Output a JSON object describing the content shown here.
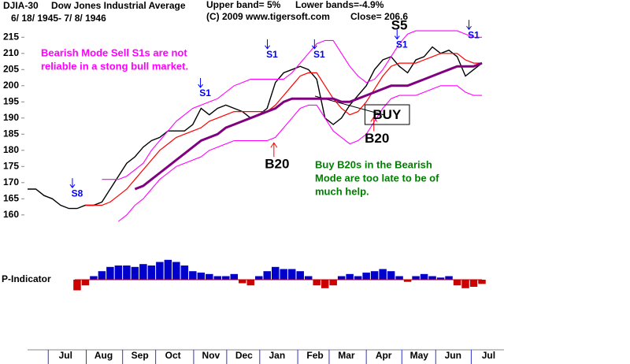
{
  "chart_data": [
    {
      "type": "line",
      "ticker": "DJIA-30",
      "title": "Dow Jones Industrial Average",
      "subtitle": "6/ 18/ 1945- 7/ 8/ 1946",
      "upper_band_label": "Upper band= 5%",
      "lower_band_label": "Lower bands=-4.9%",
      "copyright": "(C) 2009 www.tigersoft.com",
      "close_label": "Close=  206.6",
      "xlim": [
        0,
        55
      ],
      "xticks": [
        {
          "value": 4.6,
          "label": "Jul"
        },
        {
          "value": 9.2,
          "label": "Aug"
        },
        {
          "value": 13.6,
          "label": "Sep"
        },
        {
          "value": 17.6,
          "label": "Oct"
        },
        {
          "value": 22.2,
          "label": "Nov"
        },
        {
          "value": 26.2,
          "label": "Dec"
        },
        {
          "value": 30.2,
          "label": "Jan"
        },
        {
          "value": 34.8,
          "label": "Feb"
        },
        {
          "value": 38.6,
          "label": "Mar"
        },
        {
          "value": 43.1,
          "label": "Apr"
        },
        {
          "value": 47.4,
          "label": "May"
        },
        {
          "value": 51.5,
          "label": "Jun"
        },
        {
          "value": 55.8,
          "label": "Jul"
        }
      ],
      "ylim": [
        158,
        218
      ],
      "yticks": [
        160,
        165,
        170,
        175,
        180,
        185,
        190,
        195,
        200,
        205,
        210,
        215
      ],
      "grid": false,
      "series": [
        {
          "color": "#000000",
          "values": [
            168,
            168,
            166,
            165,
            163,
            162,
            162,
            163,
            163,
            164,
            168,
            172,
            176,
            178,
            181,
            183,
            184,
            186,
            186,
            186,
            188,
            193,
            191,
            193,
            194,
            193,
            192,
            190,
            191,
            193,
            201,
            204,
            205,
            206,
            205,
            202,
            190,
            188,
            190,
            194,
            197,
            200,
            205,
            208,
            209,
            206,
            204,
            208,
            209,
            212,
            210,
            211,
            209,
            203,
            205,
            207
          ]
        },
        {
          "color": "#ff0000",
          "values": [
            null,
            null,
            null,
            null,
            null,
            null,
            null,
            163,
            163,
            163,
            164,
            166,
            168,
            171,
            174,
            177,
            180,
            182,
            184,
            185,
            186,
            187,
            189,
            190,
            191,
            192,
            192,
            192,
            192,
            192,
            194,
            197,
            200,
            203,
            204,
            204,
            200,
            196,
            193,
            191,
            192,
            195,
            199,
            203,
            206,
            207,
            207,
            207,
            208,
            209,
            210,
            210,
            210,
            208,
            207,
            207
          ]
        },
        {
          "color": "#ff00ff",
          "values": [
            null,
            null,
            null,
            null,
            null,
            null,
            null,
            null,
            null,
            171,
            171,
            171,
            172,
            174,
            176,
            180,
            183,
            186,
            189,
            191,
            193,
            194,
            195,
            196,
            198,
            200,
            201,
            202,
            202,
            202,
            202,
            202,
            204,
            207,
            210,
            213,
            214,
            214,
            210,
            206,
            203,
            201,
            202,
            205,
            209,
            213,
            216,
            217,
            217,
            217,
            217,
            217,
            217,
            216,
            215,
            215
          ]
        },
        {
          "color": "#ff00ff",
          "values": [
            null,
            null,
            null,
            null,
            null,
            null,
            null,
            null,
            null,
            null,
            null,
            158,
            160,
            163,
            165,
            168,
            171,
            173,
            175,
            176,
            177,
            178,
            180,
            181,
            182,
            183,
            183,
            183,
            183,
            183,
            184,
            187,
            190,
            193,
            194,
            194,
            190,
            186,
            184,
            182,
            183,
            185,
            189,
            193,
            196,
            197,
            197,
            197,
            198,
            199,
            200,
            200,
            200,
            198,
            197,
            197
          ]
        },
        {
          "color": "#800080",
          "values": [
            null,
            null,
            null,
            null,
            null,
            null,
            null,
            null,
            null,
            null,
            null,
            null,
            null,
            168,
            169,
            171,
            173,
            175,
            177,
            179,
            181,
            183,
            184,
            185,
            187,
            188,
            189,
            190,
            191,
            192,
            193,
            195,
            196,
            196,
            196,
            196,
            196,
            196,
            195,
            195,
            196,
            197,
            198,
            199,
            200,
            200,
            200,
            201,
            202,
            203,
            204,
            205,
            206,
            206,
            206,
            207
          ]
        }
      ],
      "annotations": [
        {
          "text": "S8",
          "x": 6,
          "y": 166.5,
          "arrow": "down",
          "color": "#0000ff"
        },
        {
          "text": "S1",
          "x": 21.5,
          "y": 197.5,
          "arrow": "down",
          "color": "#0000ff"
        },
        {
          "text": "S1",
          "x": 29.6,
          "y": 209.5,
          "arrow": "down",
          "color": "#0000ff"
        },
        {
          "text": "S1",
          "x": 35.3,
          "y": 209.5,
          "arrow": "down",
          "color": "#0000ff"
        },
        {
          "text": "S1",
          "x": 45.3,
          "y": 212.5,
          "arrow": "down",
          "color": "#0000ff"
        },
        {
          "text": "S1",
          "x": 54,
          "y": 215.5,
          "arrow": "down",
          "color": "#0000ff"
        },
        {
          "text": "S5",
          "x": 45,
          "y": 218.5,
          "arrow": "none",
          "color": "#000000",
          "size": "big"
        },
        {
          "text": "B20",
          "x": 30.2,
          "y": 175.5,
          "arrow": "up",
          "color": "#000000",
          "size": "big"
        },
        {
          "text": "B20",
          "x": 42.3,
          "y": 183.5,
          "arrow": "up",
          "color": "#000000",
          "size": "big"
        },
        {
          "text": "BUY",
          "x": 43.5,
          "y": 190.8,
          "arrow": "none",
          "color": "#000000",
          "size": "big",
          "box": true
        }
      ],
      "notes": [
        {
          "lines": [
            "Bearish Mode Sell S1s are not",
            "reliable in a stong bull market."
          ],
          "color": "#ff00ff"
        },
        {
          "lines": [
            "Buy B20s in the Bearish",
            "Mode are too late to be of",
            "much help."
          ],
          "color": "#008000"
        }
      ]
    },
    {
      "type": "bar",
      "title": "P-Indicator",
      "xlim": [
        0,
        55
      ],
      "ylim": [
        -30,
        30
      ],
      "positive_color": "#0000cc",
      "negative_color": "#cc0000",
      "values": [
        0,
        0,
        0,
        0,
        0,
        0,
        -15,
        -8,
        5,
        12,
        18,
        20,
        20,
        18,
        22,
        20,
        25,
        28,
        25,
        20,
        12,
        10,
        8,
        5,
        5,
        8,
        -5,
        -8,
        5,
        12,
        18,
        15,
        15,
        12,
        5,
        -8,
        -12,
        -8,
        5,
        8,
        5,
        10,
        12,
        15,
        12,
        5,
        -3,
        5,
        8,
        5,
        3,
        5,
        -8,
        -12,
        -10,
        -6
      ]
    }
  ]
}
